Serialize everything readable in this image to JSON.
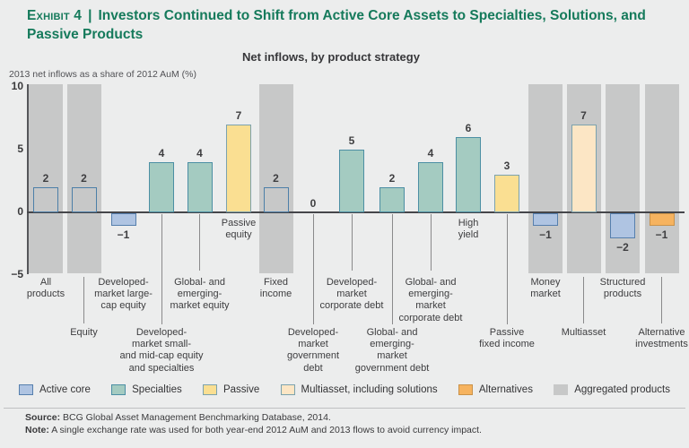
{
  "header": {
    "exhibit_label": "Exhibit 4",
    "separator": "|",
    "title": "Investors Continued to Shift from Active Core Assets to Specialties, Solutions, and Passive Products"
  },
  "chart_data": {
    "type": "bar",
    "title": "Net inflows, by product strategy",
    "ylabel": "2013 net inflows as a share of 2012 AuM (%)",
    "ylim": [
      -5,
      10
    ],
    "yticks": [
      10,
      5,
      0,
      -5
    ],
    "grid": false,
    "legend_position": "bottom",
    "unit": "% of 2012 AuM",
    "items": [
      {
        "label": "All\nproducts",
        "row": "upper",
        "value": 2,
        "strategy": "aggregated",
        "band": true,
        "outlined": true,
        "leader": null
      },
      {
        "label": "Equity",
        "row": "lower",
        "value": 2,
        "strategy": "aggregated",
        "band": true,
        "outlined": true,
        "leader": "label"
      },
      {
        "label": "Developed-\nmarket large-\ncap equity",
        "row": "upper",
        "value": -1,
        "strategy": "active_core",
        "band": false,
        "outlined": false,
        "leader": null
      },
      {
        "label": "Developed-\nmarket small-\nand mid-cap equity\nand specialties",
        "row": "lower",
        "value": 4,
        "strategy": "specialties",
        "band": false,
        "outlined": false,
        "leader": "long"
      },
      {
        "label": "Global- and\nemerging-\nmarket equity",
        "row": "upper",
        "value": 4,
        "strategy": "specialties",
        "band": false,
        "outlined": false,
        "leader": "short"
      },
      {
        "label": "Passive\nequity",
        "row": "inline",
        "value": 7,
        "strategy": "passive",
        "band": false,
        "outlined": false,
        "leader": null
      },
      {
        "label": "Fixed\nincome",
        "row": "upper",
        "value": 2,
        "strategy": "aggregated",
        "band": true,
        "outlined": true,
        "leader": null
      },
      {
        "label": "Developed-\nmarket\ngovernment\ndebt",
        "row": "lower",
        "value": 0,
        "strategy": null,
        "band": false,
        "outlined": false,
        "leader": "long"
      },
      {
        "label": "Developed-\nmarket\ncorporate debt",
        "row": "upper",
        "value": 5,
        "strategy": "specialties",
        "band": false,
        "outlined": false,
        "leader": "short"
      },
      {
        "label": "Global- and\nemerging-\nmarket\ngovernment debt",
        "row": "lower",
        "value": 2,
        "strategy": "specialties",
        "band": false,
        "outlined": false,
        "leader": "long"
      },
      {
        "label": "Global- and\nemerging-\nmarket\ncorporate debt",
        "row": "upper",
        "value": 4,
        "strategy": "specialties",
        "band": false,
        "outlined": false,
        "leader": "short"
      },
      {
        "label": "High\nyield",
        "row": "inline",
        "value": 6,
        "strategy": "specialties",
        "band": false,
        "outlined": false,
        "leader": null
      },
      {
        "label": "Passive\nfixed income",
        "row": "lower",
        "value": 3,
        "strategy": "passive",
        "band": false,
        "outlined": false,
        "leader": "long"
      },
      {
        "label": "Money\nmarket",
        "row": "upper",
        "value": -1,
        "strategy": "active_core",
        "band": true,
        "outlined": false,
        "leader": null
      },
      {
        "label": "Multiasset",
        "row": "lower",
        "value": 7,
        "strategy": "multiasset",
        "band": true,
        "outlined": false,
        "leader": "label"
      },
      {
        "label": "Structured\nproducts",
        "row": "upper",
        "value": -2,
        "strategy": "active_core",
        "band": true,
        "outlined": false,
        "leader": null
      },
      {
        "label": "Alternative\ninvestments",
        "row": "lower",
        "value": -1,
        "strategy": "alternatives",
        "band": true,
        "outlined": false,
        "leader": "label"
      }
    ]
  },
  "legend": {
    "items": [
      {
        "label": "Active core",
        "key": "active_core"
      },
      {
        "label": "Specialties",
        "key": "specialties"
      },
      {
        "label": "Passive",
        "key": "passive"
      },
      {
        "label": "Multiasset, including solutions",
        "key": "multiasset"
      },
      {
        "label": "Alternatives",
        "key": "alternatives"
      },
      {
        "label": "Aggregated products",
        "key": "aggregated"
      }
    ]
  },
  "footer": {
    "source_label": "Source:",
    "source_text": "BCG Global Asset Management Benchmarking Database, 2014.",
    "note_label": "Note:",
    "note_text": "A single exchange rate was used for both year-end 2012 AuM and 2013 flows to avoid currency impact."
  },
  "colors": {
    "title_green": "#157A5B",
    "active_core_fill": "#AFC4E2",
    "active_core_border": "#567FAD",
    "specialties_fill": "#A4CBC1",
    "specialties_border": "#4C8FA4",
    "passive_fill": "#FADF92",
    "passive_border": "#7BA2AE",
    "multiasset_fill": "#FCE6C5",
    "multiasset_border": "#7BA2AE",
    "alternatives_fill": "#F6B35F",
    "alternatives_border": "#C9924A",
    "aggregated_fill": "#C7C8C8",
    "aggregated_border": "#C7C8C8",
    "outlined_bar_border": "#4C7FA8",
    "axis": "#45464A",
    "background": "#ECEDED"
  }
}
